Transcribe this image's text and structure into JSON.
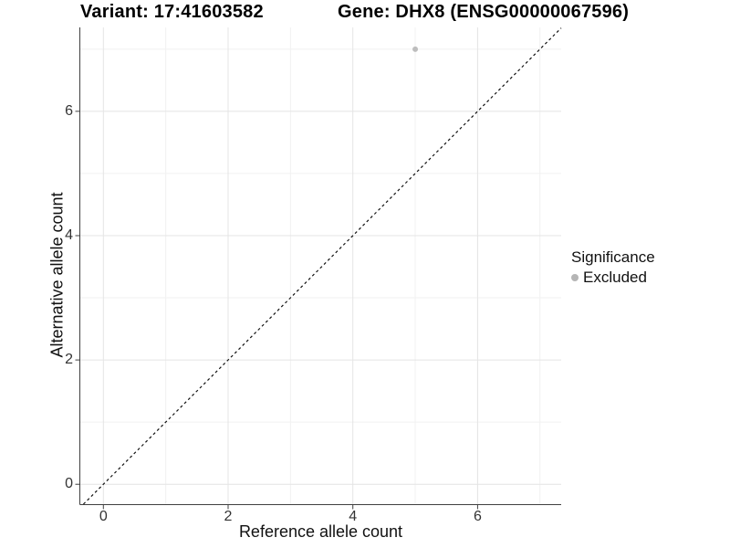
{
  "titles": {
    "variant": "Variant: 17:41603582",
    "gene": "Gene: DHX8 (ENSG00000067596)"
  },
  "chart_data": {
    "type": "scatter",
    "xlabel": "Reference allele count",
    "ylabel": "Alternative allele count",
    "xlim": [
      -0.37,
      7.34
    ],
    "ylim": [
      -0.32,
      7.35
    ],
    "x_major_ticks": [
      0,
      2,
      4,
      6
    ],
    "y_major_ticks": [
      0,
      2,
      4,
      6
    ],
    "x_minor_gridlines": [
      1,
      3,
      5,
      7
    ],
    "y_minor_gridlines": [
      1,
      3,
      5,
      7
    ],
    "grid": true,
    "series": [
      {
        "name": "Excluded",
        "points": [
          {
            "x": 5,
            "y": 7
          }
        ]
      }
    ],
    "reference_line": {
      "type": "identity",
      "equation": "y = x",
      "style": "dashed"
    },
    "legend": {
      "title": "Significance",
      "position": "right",
      "items": [
        {
          "label": "Excluded",
          "color": "#B5B5B5"
        }
      ]
    },
    "colors": {
      "point": "#BDBDBD",
      "grid_major": "#E4E4E4",
      "grid_minor": "#F1F1F1",
      "axis_line": "#404040",
      "reference_line": "#111111",
      "background": "#FFFFFF"
    }
  }
}
